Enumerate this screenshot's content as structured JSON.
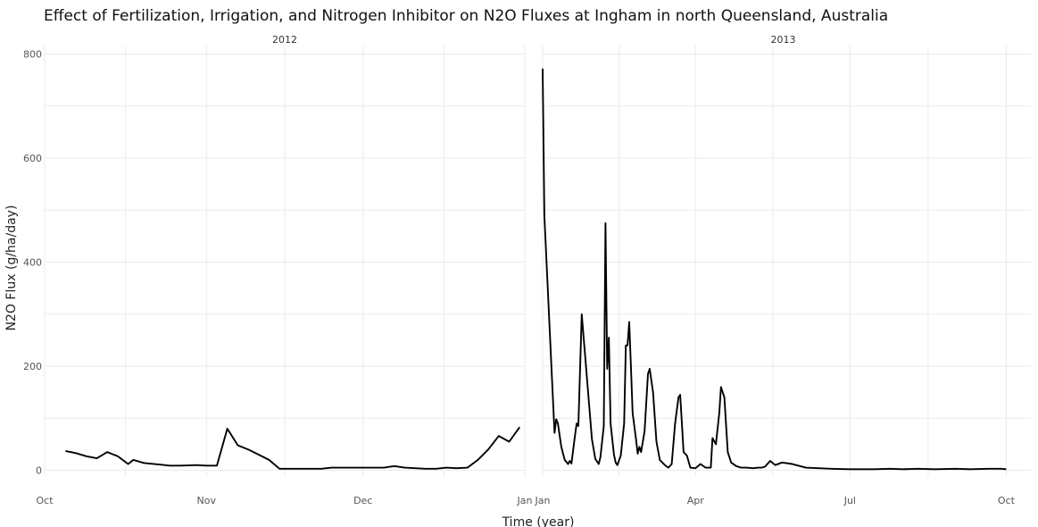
{
  "chart_data": {
    "type": "line",
    "title": "Effect of Fertilization, Irrigation, and Nitrogen Inhibitor on N2O Fluxes at Ingham in north Queensland, Australia",
    "xlabel": "Time (year)",
    "ylabel": "N2O Flux (g/ha/day)",
    "ylim": [
      0,
      800
    ],
    "yticks": [
      0,
      200,
      400,
      600,
      800
    ],
    "grid": true,
    "facets": [
      {
        "label": "2012",
        "xlim": [
          "2012-10-01",
          "2013-01-01"
        ],
        "xticks": [
          {
            "date": "2012-10-01",
            "label": "Oct"
          },
          {
            "date": "2012-11-01",
            "label": "Nov"
          },
          {
            "date": "2012-12-01",
            "label": "Dec"
          },
          {
            "date": "2013-01-01",
            "label": "Jan"
          }
        ],
        "x": [
          "2012-10-05",
          "2012-10-07",
          "2012-10-09",
          "2012-10-11",
          "2012-10-13",
          "2012-10-15",
          "2012-10-17",
          "2012-10-18",
          "2012-10-20",
          "2012-10-21",
          "2012-10-23",
          "2012-10-25",
          "2012-10-27",
          "2012-10-30",
          "2012-11-01",
          "2012-11-03",
          "2012-11-05",
          "2012-11-07",
          "2012-11-09",
          "2012-11-11",
          "2012-11-13",
          "2012-11-15",
          "2012-11-17",
          "2012-11-19",
          "2012-11-21",
          "2012-11-23",
          "2012-11-25",
          "2012-11-27",
          "2012-11-29",
          "2012-12-01",
          "2012-12-03",
          "2012-12-05",
          "2012-12-07",
          "2012-12-09",
          "2012-12-11",
          "2012-12-13",
          "2012-12-15",
          "2012-12-17",
          "2012-12-19",
          "2012-12-21",
          "2012-12-23",
          "2012-12-25",
          "2012-12-27",
          "2012-12-29",
          "2012-12-31"
        ],
        "y": [
          37,
          33,
          27,
          23,
          35,
          27,
          12,
          20,
          14,
          13,
          11,
          9,
          9,
          10,
          9,
          9,
          80,
          48,
          40,
          30,
          20,
          3,
          3,
          3,
          3,
          3,
          5,
          5,
          5,
          5,
          5,
          5,
          8,
          5,
          4,
          3,
          3,
          5,
          4,
          5,
          20,
          40,
          66,
          55,
          83
        ]
      },
      {
        "label": "2013",
        "xlim": [
          "2013-01-01",
          "2013-10-05"
        ],
        "xticks": [
          {
            "date": "2013-01-01",
            "label": "Jan"
          },
          {
            "date": "2013-04-01",
            "label": "Apr"
          },
          {
            "date": "2013-07-01",
            "label": "Jul"
          },
          {
            "date": "2013-10-01",
            "label": "Oct"
          }
        ],
        "x": [
          "2013-01-01",
          "2013-01-02",
          "2013-01-08",
          "2013-01-09",
          "2013-01-10",
          "2013-01-12",
          "2013-01-14",
          "2013-01-16",
          "2013-01-17",
          "2013-01-18",
          "2013-01-20",
          "2013-01-21",
          "2013-01-22",
          "2013-01-24",
          "2013-01-27",
          "2013-01-30",
          "2013-02-01",
          "2013-02-03",
          "2013-02-04",
          "2013-02-06",
          "2013-02-07",
          "2013-02-08",
          "2013-02-09",
          "2013-02-10",
          "2013-02-12",
          "2013-02-13",
          "2013-02-14",
          "2013-02-16",
          "2013-02-18",
          "2013-02-19",
          "2013-02-20",
          "2013-02-21",
          "2013-02-22",
          "2013-02-23",
          "2013-02-25",
          "2013-02-26",
          "2013-02-27",
          "2013-02-28",
          "2013-03-02",
          "2013-03-04",
          "2013-03-05",
          "2013-03-07",
          "2013-03-09",
          "2013-03-11",
          "2013-03-14",
          "2013-03-16",
          "2013-03-18",
          "2013-03-20",
          "2013-03-22",
          "2013-03-23",
          "2013-03-25",
          "2013-03-27",
          "2013-03-29",
          "2013-04-01",
          "2013-04-04",
          "2013-04-07",
          "2013-04-10",
          "2013-04-11",
          "2013-04-13",
          "2013-04-15",
          "2013-04-16",
          "2013-04-18",
          "2013-04-20",
          "2013-04-22",
          "2013-04-25",
          "2013-04-28",
          "2013-05-01",
          "2013-05-05",
          "2013-05-08",
          "2013-05-10",
          "2013-05-12",
          "2013-05-15",
          "2013-05-18",
          "2013-05-22",
          "2013-05-28",
          "2013-06-05",
          "2013-06-20",
          "2013-07-01",
          "2013-07-15",
          "2013-07-25",
          "2013-08-01",
          "2013-08-10",
          "2013-08-20",
          "2013-09-01",
          "2013-09-10",
          "2013-09-20",
          "2013-09-28",
          "2013-10-01"
        ],
        "y": [
          772,
          490,
          72,
          98,
          90,
          45,
          20,
          12,
          18,
          13,
          65,
          90,
          85,
          300,
          180,
          60,
          22,
          12,
          25,
          85,
          475,
          195,
          255,
          90,
          30,
          15,
          10,
          28,
          90,
          240,
          240,
          285,
          200,
          110,
          60,
          32,
          45,
          35,
          75,
          185,
          195,
          150,
          55,
          20,
          10,
          5,
          12,
          90,
          140,
          145,
          35,
          28,
          5,
          4,
          12,
          5,
          5,
          62,
          50,
          110,
          160,
          140,
          35,
          15,
          8,
          5,
          5,
          4,
          5,
          5,
          7,
          18,
          10,
          15,
          12,
          5,
          3,
          2,
          2,
          3,
          2,
          3,
          2,
          3,
          2,
          3,
          3,
          2
        ]
      }
    ]
  }
}
